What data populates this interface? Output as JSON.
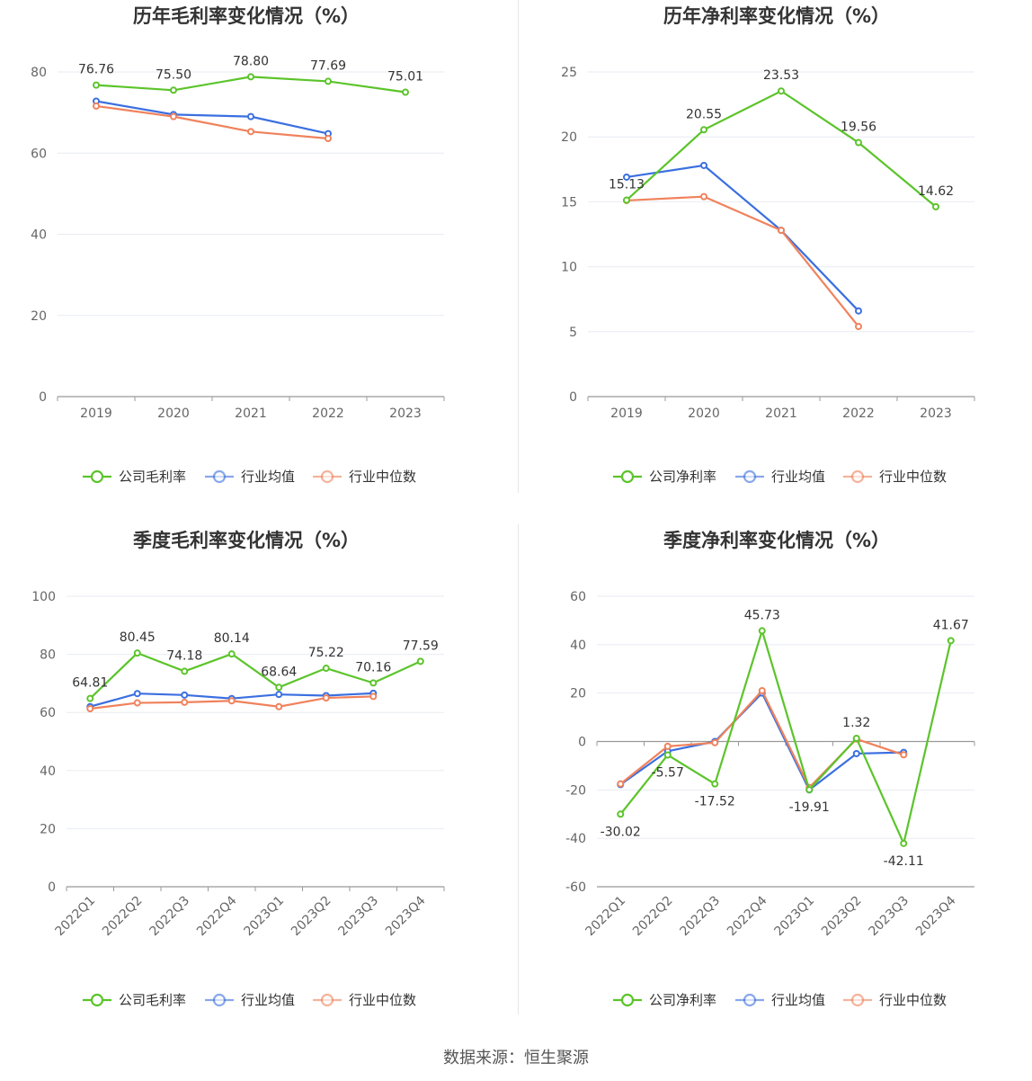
{
  "footer": "数据来源：恒生聚源",
  "colors": {
    "company": "#5bc42a",
    "avg": "#3b6fe0",
    "median": "#f0825c"
  },
  "chart_data": [
    {
      "type": "line",
      "title": "历年毛利率变化情况（%）",
      "categories": [
        "2019",
        "2020",
        "2021",
        "2022",
        "2023"
      ],
      "ylim": [
        0,
        80
      ],
      "yticks": [
        0,
        20,
        40,
        60,
        80
      ],
      "series": [
        {
          "name": "公司毛利率",
          "key": "company",
          "values": [
            76.76,
            75.5,
            78.8,
            77.69,
            75.01
          ],
          "labels": [
            "76.76",
            "75.50",
            "78.80",
            "77.69",
            "75.01"
          ]
        },
        {
          "name": "行业均值",
          "key": "avg",
          "values": [
            72.8,
            69.5,
            69.0,
            64.8,
            null
          ]
        },
        {
          "name": "行业中位数",
          "key": "median",
          "values": [
            71.6,
            69.0,
            65.3,
            63.6,
            null
          ]
        }
      ]
    },
    {
      "type": "line",
      "title": "历年净利率变化情况（%）",
      "categories": [
        "2019",
        "2020",
        "2021",
        "2022",
        "2023"
      ],
      "ylim": [
        0,
        25
      ],
      "yticks": [
        0,
        5,
        10,
        15,
        20,
        25
      ],
      "series": [
        {
          "name": "公司净利率",
          "key": "company",
          "values": [
            15.13,
            20.55,
            23.53,
            19.56,
            14.62
          ],
          "labels": [
            "15.13",
            "20.55",
            "23.53",
            "19.56",
            "14.62"
          ]
        },
        {
          "name": "行业均值",
          "key": "avg",
          "values": [
            16.9,
            17.8,
            12.8,
            6.6,
            null
          ]
        },
        {
          "name": "行业中位数",
          "key": "median",
          "values": [
            15.1,
            15.4,
            12.8,
            5.4,
            null
          ]
        }
      ]
    },
    {
      "type": "line",
      "title": "季度毛利率变化情况（%）",
      "categories": [
        "2022Q1",
        "2022Q2",
        "2022Q3",
        "2022Q4",
        "2023Q1",
        "2023Q2",
        "2023Q3",
        "2023Q4"
      ],
      "ylim": [
        0,
        100
      ],
      "yticks": [
        0,
        20,
        40,
        60,
        80,
        100
      ],
      "series": [
        {
          "name": "公司毛利率",
          "key": "company",
          "values": [
            64.81,
            80.45,
            74.18,
            80.14,
            68.64,
            75.22,
            70.16,
            77.59
          ],
          "labels": [
            "64.81",
            "80.45",
            "74.18",
            "80.14",
            "68.64",
            "75.22",
            "70.16",
            "77.59"
          ]
        },
        {
          "name": "行业均值",
          "key": "avg",
          "values": [
            62.0,
            66.5,
            66.0,
            64.8,
            66.2,
            65.8,
            66.6,
            null
          ]
        },
        {
          "name": "行业中位数",
          "key": "median",
          "values": [
            61.3,
            63.3,
            63.5,
            64.0,
            62.0,
            65.0,
            65.5,
            null
          ]
        }
      ]
    },
    {
      "type": "line",
      "title": "季度净利率变化情况（%）",
      "categories": [
        "2022Q1",
        "2022Q2",
        "2022Q3",
        "2022Q4",
        "2023Q1",
        "2023Q2",
        "2023Q3",
        "2023Q4"
      ],
      "ylim": [
        -60,
        60
      ],
      "yticks": [
        -60,
        -40,
        -20,
        0,
        20,
        40,
        60
      ],
      "series": [
        {
          "name": "公司净利率",
          "key": "company",
          "values": [
            -30.02,
            -5.57,
            -17.52,
            45.73,
            -19.91,
            1.32,
            -42.11,
            41.67
          ],
          "labels": [
            "-30.02",
            "-5.57",
            "-17.52",
            "45.73",
            "-19.91",
            "1.32",
            "-42.11",
            "41.67"
          ]
        },
        {
          "name": "行业均值",
          "key": "avg",
          "values": [
            -17.8,
            -4.0,
            0.0,
            20.0,
            -20.0,
            -5.0,
            -4.5,
            null
          ]
        },
        {
          "name": "行业中位数",
          "key": "median",
          "values": [
            -17.5,
            -2.0,
            -0.5,
            21.0,
            -19.0,
            1.0,
            -5.5,
            null
          ]
        }
      ]
    }
  ]
}
